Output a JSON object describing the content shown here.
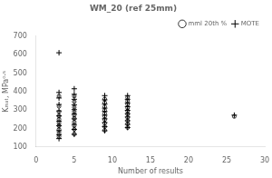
{
  "chart_data": {
    "type": "scatter",
    "title": "WM_20 (ref 25mm)",
    "xlabel": "Number of results",
    "ylabel": "Kₘₐₜ, MPa⁰·⁵",
    "xlim": [
      0,
      30
    ],
    "ylim": [
      100,
      700
    ],
    "xticks": [
      0,
      5,
      10,
      15,
      20,
      25,
      30
    ],
    "yticks": [
      100,
      200,
      300,
      400,
      500,
      600,
      700
    ],
    "grid": false,
    "legend": "upper right",
    "series": [
      {
        "name": "mml 20th %",
        "color": "#000000",
        "marker": "circle",
        "x": [
          3,
          3,
          3,
          3,
          3,
          3,
          3,
          3,
          3,
          3,
          5,
          5,
          5,
          5,
          5,
          5,
          5,
          5,
          5,
          5,
          9,
          9,
          9,
          9,
          9,
          9,
          9,
          9,
          9,
          9,
          12,
          12,
          12,
          12,
          12,
          12,
          12,
          12,
          12,
          12,
          26
        ],
        "values": [
          155,
          175,
          195,
          215,
          230,
          250,
          268,
          290,
          320,
          375,
          170,
          195,
          215,
          235,
          255,
          272,
          290,
          315,
          345,
          375,
          190,
          210,
          228,
          248,
          265,
          282,
          298,
          318,
          340,
          360,
          205,
          225,
          242,
          260,
          278,
          295,
          312,
          330,
          348,
          368,
          265
        ]
      },
      {
        "name": "MOTE",
        "color": "#000000",
        "marker": "plus",
        "x": [
          3,
          3,
          3,
          3,
          3,
          3,
          3,
          3,
          3,
          3,
          3,
          5,
          5,
          5,
          5,
          5,
          5,
          5,
          5,
          5,
          5,
          9,
          9,
          9,
          9,
          9,
          9,
          9,
          9,
          9,
          9,
          12,
          12,
          12,
          12,
          12,
          12,
          12,
          12,
          12,
          12,
          26
        ],
        "values": [
          145,
          165,
          188,
          215,
          240,
          268,
          295,
          330,
          365,
          395,
          610,
          168,
          195,
          222,
          252,
          278,
          302,
          328,
          358,
          385,
          415,
          188,
          210,
          232,
          252,
          272,
          292,
          310,
          332,
          355,
          378,
          205,
          222,
          242,
          262,
          280,
          298,
          318,
          338,
          358,
          378,
          272
        ]
      }
    ]
  }
}
